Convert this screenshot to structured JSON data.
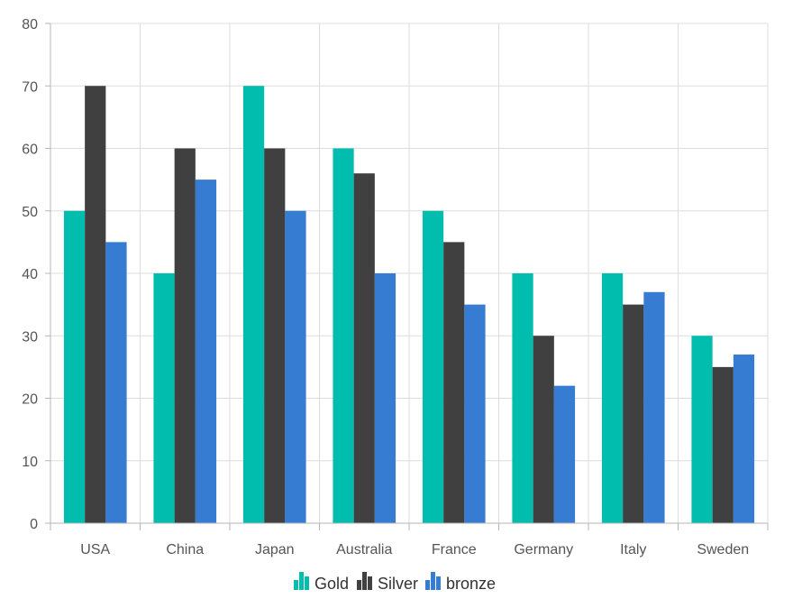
{
  "chart_data": {
    "type": "bar",
    "categories": [
      "USA",
      "China",
      "Japan",
      "Australia",
      "France",
      "Germany",
      "Italy",
      "Sweden"
    ],
    "series": [
      {
        "name": "Gold",
        "color": "#00bdae",
        "values": [
          50,
          40,
          70,
          60,
          50,
          40,
          40,
          30
        ]
      },
      {
        "name": "Silver",
        "color": "#404041",
        "values": [
          70,
          60,
          60,
          56,
          45,
          30,
          35,
          25
        ]
      },
      {
        "name": "bronze",
        "color": "#357cd2",
        "values": [
          45,
          55,
          50,
          40,
          35,
          22,
          37,
          27
        ]
      }
    ],
    "ylim": [
      0,
      80
    ],
    "yticks": [
      0,
      10,
      20,
      30,
      40,
      50,
      60,
      70,
      80
    ],
    "grid": true,
    "legend_position": "bottom-center"
  }
}
